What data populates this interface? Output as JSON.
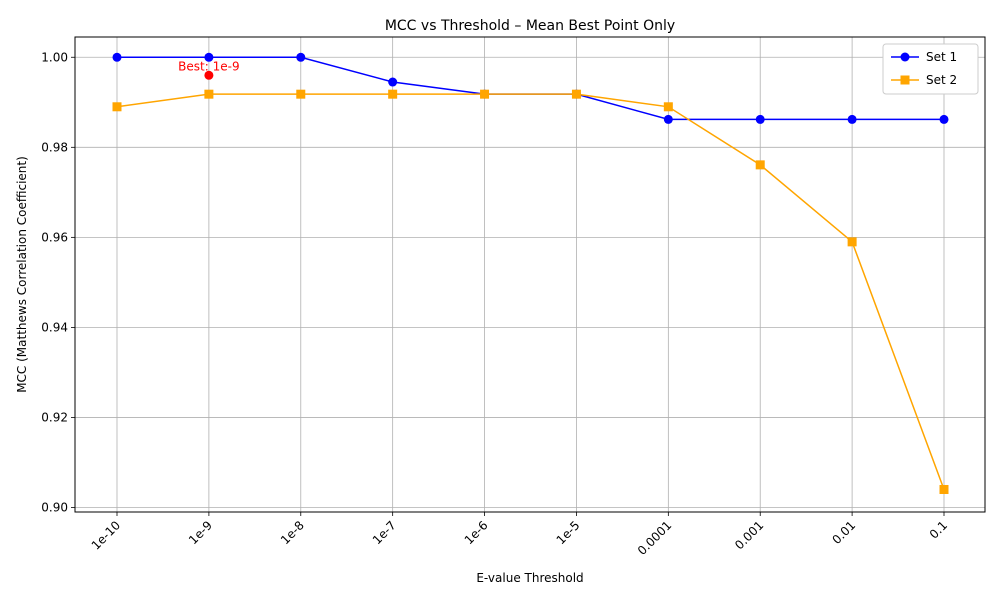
{
  "chart_data": {
    "type": "line",
    "title": "MCC vs Threshold – Mean Best Point Only",
    "xlabel": "E-value Threshold",
    "ylabel": "MCC (Matthews Correlation Coefficient)",
    "categories": [
      "1e-10",
      "1e-9",
      "1e-8",
      "1e-7",
      "1e-6",
      "1e-5",
      "0.0001",
      "0.001",
      "0.01",
      "0.1"
    ],
    "ylim": [
      0.899,
      1.0045
    ],
    "yticks": [
      "0.90",
      "0.92",
      "0.94",
      "0.96",
      "0.98",
      "1.00"
    ],
    "ytick_values": [
      0.9,
      0.92,
      0.94,
      0.96,
      0.98,
      1.0
    ],
    "grid": true,
    "legend_position": "top-right",
    "series": [
      {
        "name": "Set 1",
        "color": "#0000ff",
        "marker": "circle",
        "values": [
          1.0,
          1.0,
          1.0,
          0.9945,
          0.9918,
          0.9918,
          0.9862,
          0.9862,
          0.9862,
          0.9862
        ]
      },
      {
        "name": "Set 2",
        "color": "#ffa500",
        "marker": "square",
        "values": [
          0.989,
          0.9918,
          0.9918,
          0.9918,
          0.9918,
          0.9918,
          0.989,
          0.9761,
          0.959,
          0.904
        ]
      }
    ],
    "best_point": {
      "category": "1e-9",
      "value": 0.996,
      "label": "Best: 1e-9",
      "color": "#ff0000"
    }
  }
}
